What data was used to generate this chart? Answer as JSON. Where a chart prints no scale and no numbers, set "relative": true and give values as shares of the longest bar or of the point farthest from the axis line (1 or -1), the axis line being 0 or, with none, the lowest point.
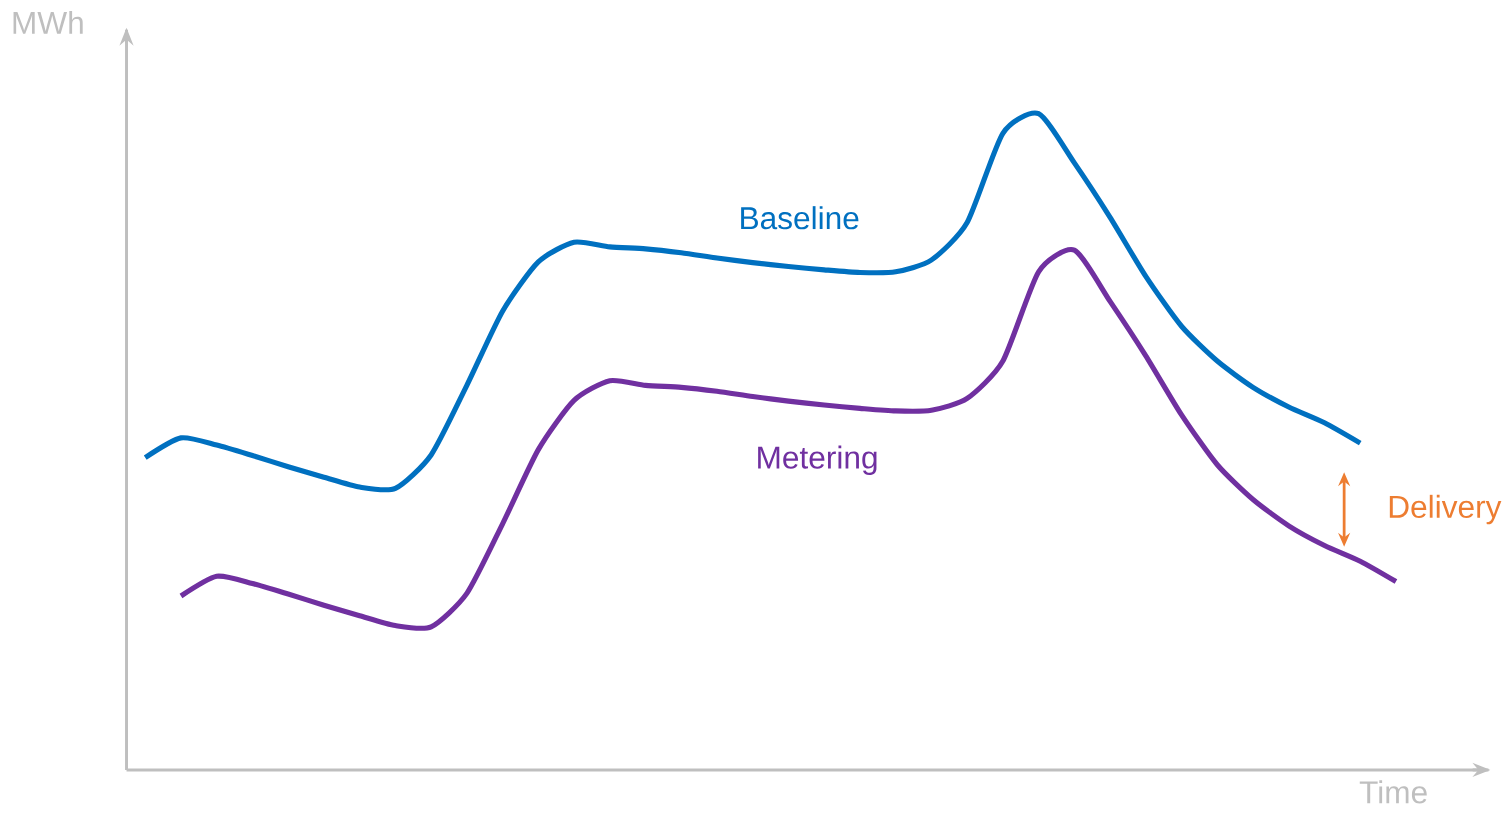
{
  "chart_data": {
    "type": "line",
    "relative": true,
    "xlabel": "Time",
    "ylabel": "MWh",
    "categories": [
      null,
      null,
      null,
      null,
      null,
      null,
      null,
      null,
      null,
      null,
      null,
      null,
      null,
      null,
      null,
      null,
      null,
      null,
      null,
      null,
      null,
      null,
      null,
      null,
      null,
      null,
      null,
      null,
      null,
      null,
      null,
      null,
      null,
      null,
      null,
      null
    ],
    "series": [
      {
        "name": "Baseline",
        "color": "#0070c0",
        "values": [
          0.476,
          0.506,
          0.495,
          0.479,
          0.462,
          0.446,
          0.431,
          0.429,
          0.48,
          0.586,
          0.699,
          0.774,
          0.804,
          0.797,
          0.794,
          0.788,
          0.78,
          0.773,
          0.767,
          0.762,
          0.758,
          0.759,
          0.777,
          0.834,
          0.97,
          1.0,
          0.925,
          0.842,
          0.752,
          0.676,
          0.623,
          0.583,
          0.553,
          0.529,
          0.498,
          null
        ]
      },
      {
        "name": "Metering",
        "color": "#7030a0",
        "values": [
          null,
          0.265,
          0.295,
          0.284,
          0.268,
          0.251,
          0.235,
          0.22,
          0.218,
          0.269,
          0.375,
          0.488,
          0.563,
          0.593,
          0.586,
          0.583,
          0.577,
          0.569,
          0.562,
          0.556,
          0.551,
          0.547,
          0.548,
          0.566,
          0.623,
          0.759,
          0.792,
          0.714,
          0.631,
          0.541,
          0.465,
          0.412,
          0.372,
          0.342,
          0.318,
          0.287
        ]
      }
    ],
    "annotations": [
      "Delivery"
    ]
  }
}
